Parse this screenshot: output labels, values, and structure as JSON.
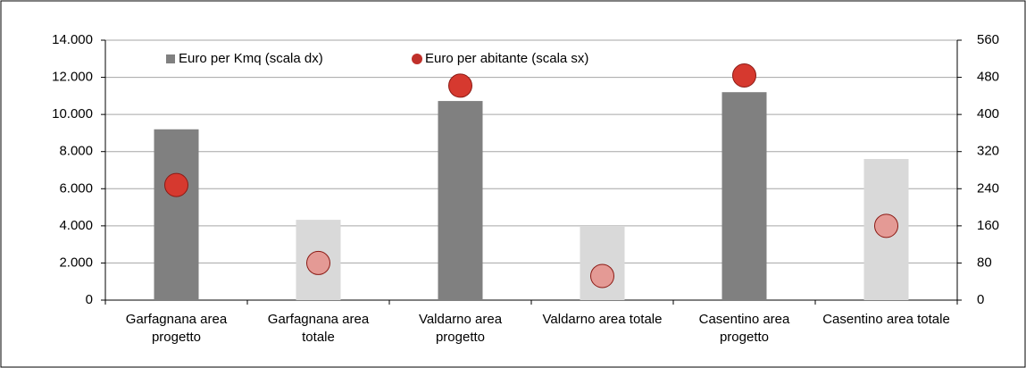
{
  "chart_data": {
    "type": "bar",
    "categories": [
      "Garfagnana area progetto",
      "Garfagnana area totale",
      "Valdarno area progetto",
      "Valdarno area totale",
      "Casentino area progetto",
      "Casentino area totale"
    ],
    "series": [
      {
        "name": "Euro per Kmq (scala dx)",
        "type": "bar",
        "axis": "y2",
        "color": "#808080",
        "colors": [
          "#808080",
          "#d9d9d9",
          "#808080",
          "#d9d9d9",
          "#808080",
          "#d9d9d9"
        ],
        "values": [
          368,
          173,
          429,
          158,
          448,
          304
        ]
      },
      {
        "name": "Euro per abitante (scala sx)",
        "type": "scatter",
        "axis": "y",
        "color": "#c0302a",
        "colors": [
          "#d6392f",
          "#e49a95",
          "#d6392f",
          "#e49a95",
          "#d6392f",
          "#e49a95"
        ],
        "values": [
          6200,
          2000,
          11550,
          1300,
          12100,
          4000
        ]
      }
    ],
    "ylim": [
      0,
      14000
    ],
    "yticks": [
      0,
      {
        "value": 2000,
        "label": "2.000"
      },
      {
        "value": 4000,
        "label": "4.000"
      },
      {
        "value": 6000,
        "label": "6.000"
      },
      {
        "value": 8000,
        "label": "8.000"
      },
      {
        "value": 10000,
        "label": "10.000"
      },
      {
        "value": 12000,
        "label": "12.000"
      },
      {
        "value": 14000,
        "label": "14.000"
      }
    ],
    "y2lim": [
      0,
      560
    ],
    "y2ticks": [
      0,
      80,
      160,
      240,
      320,
      400,
      480,
      560
    ],
    "grid": true,
    "legend": "top"
  }
}
